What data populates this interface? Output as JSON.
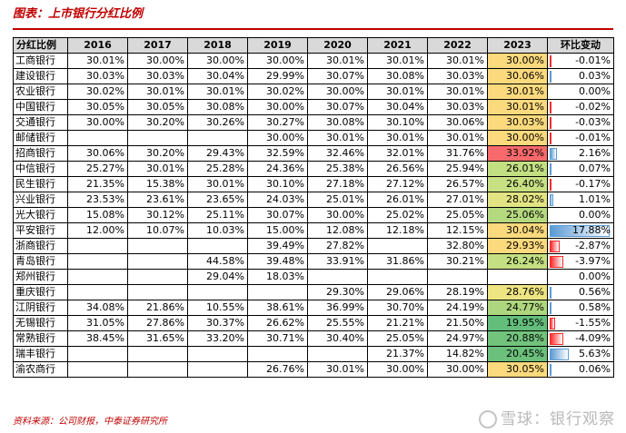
{
  "title": "图表：上市银行分红比例",
  "columns": [
    "分红比例",
    "2016",
    "2017",
    "2018",
    "2019",
    "2020",
    "2021",
    "2022",
    "2023",
    "环比变动"
  ],
  "rows": [
    {
      "bank": "工商银行",
      "vals": [
        "30.01%",
        "30.00%",
        "30.00%",
        "30.00%",
        "30.01%",
        "30.01%",
        "30.01%"
      ],
      "y2023": "30.00%",
      "y2023_color": "#fbd97d",
      "change": "-0.01%",
      "change_value": -0.01
    },
    {
      "bank": "建设银行",
      "vals": [
        "30.03%",
        "30.03%",
        "30.04%",
        "29.99%",
        "30.07%",
        "30.08%",
        "30.03%"
      ],
      "y2023": "30.06%",
      "y2023_color": "#fbd97d",
      "change": "0.03%",
      "change_value": 0.03
    },
    {
      "bank": "农业银行",
      "vals": [
        "30.02%",
        "30.01%",
        "30.01%",
        "30.02%",
        "30.00%",
        "30.01%",
        "30.01%"
      ],
      "y2023": "30.01%",
      "y2023_color": "#fbd97d",
      "change": "0.00%",
      "change_value": 0.0
    },
    {
      "bank": "中国银行",
      "vals": [
        "30.05%",
        "30.05%",
        "30.08%",
        "30.00%",
        "30.07%",
        "30.04%",
        "30.03%"
      ],
      "y2023": "30.01%",
      "y2023_color": "#fbd97d",
      "change": "-0.02%",
      "change_value": -0.02
    },
    {
      "bank": "交通银行",
      "vals": [
        "30.00%",
        "30.20%",
        "30.26%",
        "30.27%",
        "30.08%",
        "30.10%",
        "30.06%"
      ],
      "y2023": "30.03%",
      "y2023_color": "#fbd97d",
      "change": "-0.03%",
      "change_value": -0.03
    },
    {
      "bank": "邮储银行",
      "vals": [
        "",
        "",
        "",
        "30.00%",
        "30.01%",
        "30.01%",
        "30.01%"
      ],
      "y2023": "30.00%",
      "y2023_color": "#fbd97d",
      "change": "-0.01%",
      "change_value": -0.01
    },
    {
      "bank": "招商银行",
      "vals": [
        "30.06%",
        "30.20%",
        "29.43%",
        "32.59%",
        "32.46%",
        "32.01%",
        "31.76%"
      ],
      "y2023": "33.92%",
      "y2023_color": "#f8696b",
      "change": "2.16%",
      "change_value": 2.16
    },
    {
      "bank": "中信银行",
      "vals": [
        "25.27%",
        "30.01%",
        "25.28%",
        "24.36%",
        "25.38%",
        "26.56%",
        "25.94%"
      ],
      "y2023": "26.01%",
      "y2023_color": "#c2df81",
      "change": "0.07%",
      "change_value": 0.07
    },
    {
      "bank": "民生银行",
      "vals": [
        "21.35%",
        "15.38%",
        "30.01%",
        "30.10%",
        "27.18%",
        "27.12%",
        "26.57%"
      ],
      "y2023": "26.40%",
      "y2023_color": "#c6e082",
      "change": "-0.17%",
      "change_value": -0.17
    },
    {
      "bank": "兴业银行",
      "vals": [
        "23.53%",
        "23.61%",
        "23.65%",
        "24.03%",
        "25.01%",
        "26.01%",
        "27.01%"
      ],
      "y2023": "28.02%",
      "y2023_color": "#e2e383",
      "change": "1.01%",
      "change_value": 1.01
    },
    {
      "bank": "光大银行",
      "vals": [
        "15.08%",
        "30.12%",
        "25.11%",
        "30.07%",
        "30.00%",
        "25.02%",
        "25.05%"
      ],
      "y2023": "25.06%",
      "y2023_color": "#b5d97f",
      "change": "0.00%",
      "change_value": 0.0
    },
    {
      "bank": "平安银行",
      "vals": [
        "12.00%",
        "10.07%",
        "10.03%",
        "15.00%",
        "12.08%",
        "12.18%",
        "12.15%"
      ],
      "y2023": "30.04%",
      "y2023_color": "#fbd97d",
      "change": "17.88%",
      "change_value": 17.88
    },
    {
      "bank": "浙商银行",
      "vals": [
        "",
        "",
        "",
        "39.49%",
        "27.82%",
        "",
        "32.80%"
      ],
      "y2023": "29.93%",
      "y2023_color": "#fbd97d",
      "change": "-2.87%",
      "change_value": -2.87
    },
    {
      "bank": "青岛银行",
      "vals": [
        "",
        "",
        "44.58%",
        "39.48%",
        "33.91%",
        "31.86%",
        "30.21%"
      ],
      "y2023": "26.24%",
      "y2023_color": "#c4df82",
      "change": "-3.97%",
      "change_value": -3.97
    },
    {
      "bank": "郑州银行",
      "vals": [
        "",
        "",
        "29.04%",
        "18.03%",
        "",
        "",
        ""
      ],
      "y2023": "",
      "y2023_color": "",
      "change": "0.00%",
      "change_value": 0.0
    },
    {
      "bank": "重庆银行",
      "vals": [
        "",
        "",
        "",
        "",
        "29.30%",
        "29.06%",
        "28.19%"
      ],
      "y2023": "28.76%",
      "y2023_color": "#ede482",
      "change": "0.56%",
      "change_value": 0.56
    },
    {
      "bank": "江阴银行",
      "vals": [
        "34.08%",
        "21.86%",
        "10.55%",
        "38.61%",
        "36.99%",
        "30.70%",
        "24.19%"
      ],
      "y2023": "24.77%",
      "y2023_color": "#aed67e",
      "change": "0.58%",
      "change_value": 0.58
    },
    {
      "bank": "无锡银行",
      "vals": [
        "31.05%",
        "27.86%",
        "30.37%",
        "26.62%",
        "25.55%",
        "21.21%",
        "21.50%"
      ],
      "y2023": "19.95%",
      "y2023_color": "#63be7b",
      "change": "-1.55%",
      "change_value": -1.55
    },
    {
      "bank": "常熟银行",
      "vals": [
        "38.45%",
        "31.65%",
        "33.20%",
        "30.71%",
        "30.40%",
        "25.05%",
        "24.97%"
      ],
      "y2023": "20.88%",
      "y2023_color": "#72c37c",
      "change": "-4.09%",
      "change_value": -4.09
    },
    {
      "bank": "瑞丰银行",
      "vals": [
        "",
        "",
        "",
        "",
        "",
        "21.37%",
        "14.82%"
      ],
      "y2023": "20.45%",
      "y2023_color": "#6bc07b",
      "change": "5.63%",
      "change_value": 5.63
    },
    {
      "bank": "渝农商行",
      "vals": [
        "",
        "",
        "",
        "26.76%",
        "30.01%",
        "30.00%",
        "30.00%"
      ],
      "y2023": "30.05%",
      "y2023_color": "#fbd97d",
      "change": "0.06%",
      "change_value": 0.06
    }
  ],
  "change_bar_colors": {
    "positive": "#5b9bd5",
    "negative": "#ff2b2b"
  },
  "source": "资料来源：公司财报，中泰证券研究所",
  "watermark": "雪球：银行观察"
}
